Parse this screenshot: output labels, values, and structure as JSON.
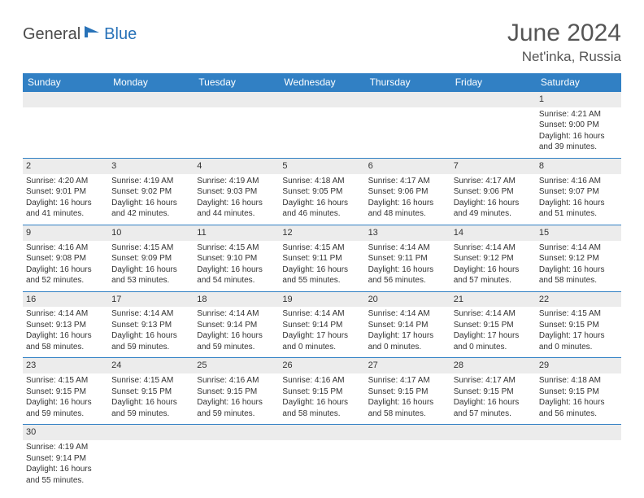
{
  "logo": {
    "general": "General",
    "blue": "Blue"
  },
  "title": "June 2024",
  "location": "Net'inka, Russia",
  "colors": {
    "header_bg": "#3180c4",
    "header_text": "#ffffff",
    "border": "#3180c4",
    "daynum_bg": "#ececec",
    "logo_blue": "#2872b8",
    "text_gray": "#555555"
  },
  "dayHeaders": [
    "Sunday",
    "Monday",
    "Tuesday",
    "Wednesday",
    "Thursday",
    "Friday",
    "Saturday"
  ],
  "weeks": [
    [
      null,
      null,
      null,
      null,
      null,
      null,
      {
        "n": "1",
        "sunrise": "4:21 AM",
        "sunset": "9:00 PM",
        "dl": "16 hours and 39 minutes."
      }
    ],
    [
      {
        "n": "2",
        "sunrise": "4:20 AM",
        "sunset": "9:01 PM",
        "dl": "16 hours and 41 minutes."
      },
      {
        "n": "3",
        "sunrise": "4:19 AM",
        "sunset": "9:02 PM",
        "dl": "16 hours and 42 minutes."
      },
      {
        "n": "4",
        "sunrise": "4:19 AM",
        "sunset": "9:03 PM",
        "dl": "16 hours and 44 minutes."
      },
      {
        "n": "5",
        "sunrise": "4:18 AM",
        "sunset": "9:05 PM",
        "dl": "16 hours and 46 minutes."
      },
      {
        "n": "6",
        "sunrise": "4:17 AM",
        "sunset": "9:06 PM",
        "dl": "16 hours and 48 minutes."
      },
      {
        "n": "7",
        "sunrise": "4:17 AM",
        "sunset": "9:06 PM",
        "dl": "16 hours and 49 minutes."
      },
      {
        "n": "8",
        "sunrise": "4:16 AM",
        "sunset": "9:07 PM",
        "dl": "16 hours and 51 minutes."
      }
    ],
    [
      {
        "n": "9",
        "sunrise": "4:16 AM",
        "sunset": "9:08 PM",
        "dl": "16 hours and 52 minutes."
      },
      {
        "n": "10",
        "sunrise": "4:15 AM",
        "sunset": "9:09 PM",
        "dl": "16 hours and 53 minutes."
      },
      {
        "n": "11",
        "sunrise": "4:15 AM",
        "sunset": "9:10 PM",
        "dl": "16 hours and 54 minutes."
      },
      {
        "n": "12",
        "sunrise": "4:15 AM",
        "sunset": "9:11 PM",
        "dl": "16 hours and 55 minutes."
      },
      {
        "n": "13",
        "sunrise": "4:14 AM",
        "sunset": "9:11 PM",
        "dl": "16 hours and 56 minutes."
      },
      {
        "n": "14",
        "sunrise": "4:14 AM",
        "sunset": "9:12 PM",
        "dl": "16 hours and 57 minutes."
      },
      {
        "n": "15",
        "sunrise": "4:14 AM",
        "sunset": "9:12 PM",
        "dl": "16 hours and 58 minutes."
      }
    ],
    [
      {
        "n": "16",
        "sunrise": "4:14 AM",
        "sunset": "9:13 PM",
        "dl": "16 hours and 58 minutes."
      },
      {
        "n": "17",
        "sunrise": "4:14 AM",
        "sunset": "9:13 PM",
        "dl": "16 hours and 59 minutes."
      },
      {
        "n": "18",
        "sunrise": "4:14 AM",
        "sunset": "9:14 PM",
        "dl": "16 hours and 59 minutes."
      },
      {
        "n": "19",
        "sunrise": "4:14 AM",
        "sunset": "9:14 PM",
        "dl": "17 hours and 0 minutes."
      },
      {
        "n": "20",
        "sunrise": "4:14 AM",
        "sunset": "9:14 PM",
        "dl": "17 hours and 0 minutes."
      },
      {
        "n": "21",
        "sunrise": "4:14 AM",
        "sunset": "9:15 PM",
        "dl": "17 hours and 0 minutes."
      },
      {
        "n": "22",
        "sunrise": "4:15 AM",
        "sunset": "9:15 PM",
        "dl": "17 hours and 0 minutes."
      }
    ],
    [
      {
        "n": "23",
        "sunrise": "4:15 AM",
        "sunset": "9:15 PM",
        "dl": "16 hours and 59 minutes."
      },
      {
        "n": "24",
        "sunrise": "4:15 AM",
        "sunset": "9:15 PM",
        "dl": "16 hours and 59 minutes."
      },
      {
        "n": "25",
        "sunrise": "4:16 AM",
        "sunset": "9:15 PM",
        "dl": "16 hours and 59 minutes."
      },
      {
        "n": "26",
        "sunrise": "4:16 AM",
        "sunset": "9:15 PM",
        "dl": "16 hours and 58 minutes."
      },
      {
        "n": "27",
        "sunrise": "4:17 AM",
        "sunset": "9:15 PM",
        "dl": "16 hours and 58 minutes."
      },
      {
        "n": "28",
        "sunrise": "4:17 AM",
        "sunset": "9:15 PM",
        "dl": "16 hours and 57 minutes."
      },
      {
        "n": "29",
        "sunrise": "4:18 AM",
        "sunset": "9:15 PM",
        "dl": "16 hours and 56 minutes."
      }
    ],
    [
      {
        "n": "30",
        "sunrise": "4:19 AM",
        "sunset": "9:14 PM",
        "dl": "16 hours and 55 minutes."
      },
      null,
      null,
      null,
      null,
      null,
      null
    ]
  ],
  "labels": {
    "sunrise": "Sunrise: ",
    "sunset": "Sunset: ",
    "daylight": "Daylight: "
  }
}
